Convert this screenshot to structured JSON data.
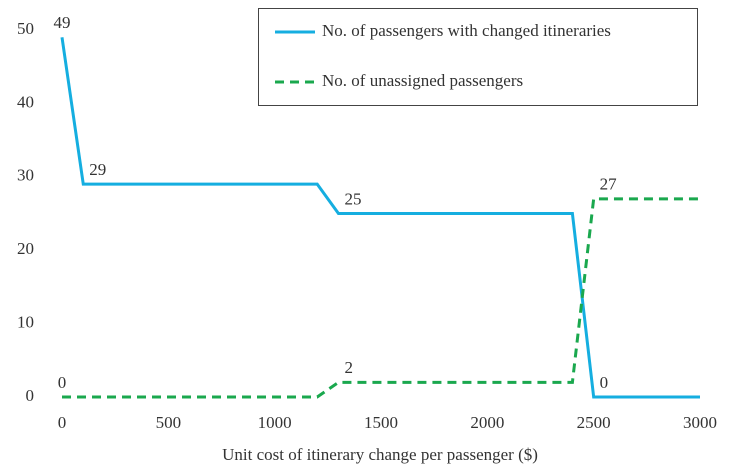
{
  "chart_data": {
    "type": "line",
    "xlabel": "Unit cost of itinerary change per passenger ($)",
    "xlim": [
      0,
      3000
    ],
    "xticks": [
      0,
      500,
      1000,
      1500,
      2000,
      2500,
      3000
    ],
    "ylim": [
      0,
      50
    ],
    "yticks": [
      0,
      10,
      20,
      30,
      40,
      50
    ],
    "grid": false,
    "legend": "upper right",
    "series": [
      {
        "name": "No. of passengers with changed itineraries",
        "color": "#15aee0",
        "dash": false,
        "x": [
          0,
          100,
          1200,
          1300,
          2400,
          2500,
          3000
        ],
        "values": [
          49,
          29,
          29,
          25,
          25,
          0,
          0
        ],
        "value_labels": [
          "49",
          "29",
          null,
          "25",
          null,
          "0",
          null
        ]
      },
      {
        "name": "No. of unassigned passengers",
        "color": "#1aa84e",
        "dash": true,
        "x": [
          0,
          1200,
          1300,
          2400,
          2500,
          3000
        ],
        "values": [
          0,
          0,
          2,
          2,
          27,
          27
        ],
        "value_labels": [
          "0",
          null,
          "2",
          null,
          "27",
          null
        ]
      }
    ]
  }
}
